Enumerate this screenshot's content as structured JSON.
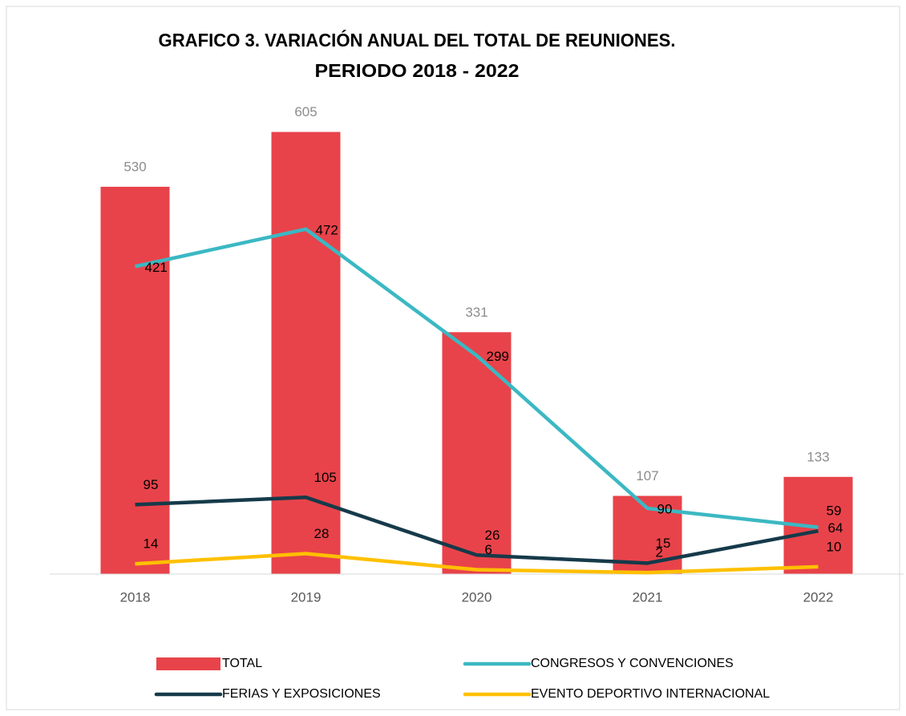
{
  "chart_data": {
    "type": "bar",
    "title": "GRAFICO 3. VARIACIÓN ANUAL DEL TOTAL DE REUNIONES.",
    "subtitle": "PERIODO 2018 - 2022",
    "categories": [
      "2018",
      "2019",
      "2020",
      "2021",
      "2022"
    ],
    "ylim": [
      0,
      700
    ],
    "series": [
      {
        "name": "TOTAL",
        "type": "bar",
        "color": "#e8434a",
        "values": [
          530,
          605,
          331,
          107,
          133
        ]
      },
      {
        "name": "CONGRESOS Y CONVENCIONES",
        "type": "line",
        "color": "#3bb8c3",
        "values": [
          421,
          472,
          299,
          90,
          64
        ]
      },
      {
        "name": "FERIAS Y EXPOSICIONES",
        "type": "line",
        "color": "#163a4a",
        "values": [
          95,
          105,
          26,
          15,
          59
        ]
      },
      {
        "name": "EVENTO DEPORTIVO INTERNACIONAL",
        "type": "line",
        "color": "#ffc000",
        "values": [
          14,
          28,
          6,
          2,
          10
        ]
      }
    ]
  }
}
